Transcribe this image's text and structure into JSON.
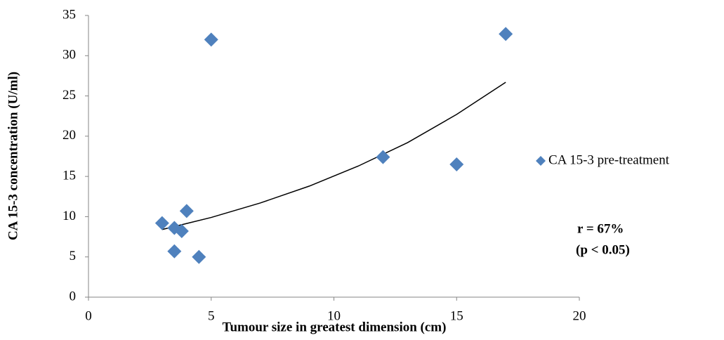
{
  "chart_data": {
    "type": "scatter",
    "x_label": "Tumour size in greatest dimension (cm)",
    "y_label": "CA 15-3 concentration (U/ml)",
    "xlim": [
      0,
      20
    ],
    "xticks": [
      0,
      5,
      10,
      15,
      20
    ],
    "ylim": [
      0,
      35
    ],
    "yticks": [
      0,
      5,
      10,
      15,
      20,
      25,
      30,
      35
    ],
    "series": [
      {
        "name": "CA 15-3 pre-treatment",
        "color": "#4f81bd",
        "x": [
          3,
          3.5,
          3.5,
          3.8,
          4,
          4.5,
          5,
          12,
          15,
          17
        ],
        "values": [
          9.2,
          5.7,
          8.6,
          8.2,
          10.7,
          5.0,
          32,
          17.4,
          16.5,
          32.7
        ]
      }
    ],
    "trendline": {
      "color": "#000000",
      "x": [
        3,
        5,
        7,
        9,
        11,
        13,
        15,
        17
      ],
      "values": [
        8.4,
        9.9,
        11.7,
        13.8,
        16.3,
        19.2,
        22.7,
        26.7
      ]
    },
    "annotations": [
      "r = 67%",
      "(p < 0.05)"
    ],
    "grid": false
  }
}
